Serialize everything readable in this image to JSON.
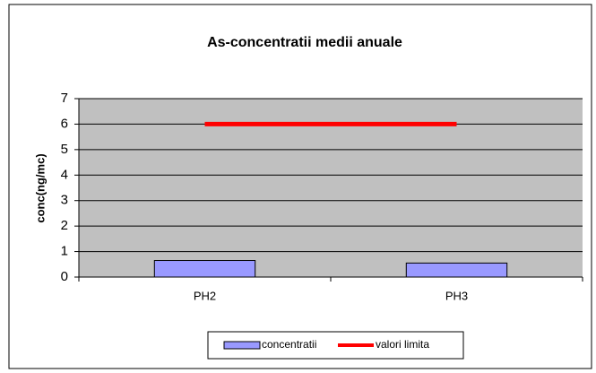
{
  "chart_data": {
    "type": "bar",
    "title": "As-concentratii medii anuale",
    "y_label": "conc(ng/mc)",
    "categories": [
      "PH2",
      "PH3"
    ],
    "series": [
      {
        "name": "concentratii",
        "type": "bar",
        "color": "#9999ff",
        "values": [
          0.65,
          0.55
        ]
      },
      {
        "name": "valori limita",
        "type": "line",
        "color": "#ff0000",
        "values": [
          6,
          6
        ]
      }
    ],
    "ylim": [
      0,
      7
    ],
    "yticks": [
      0,
      1,
      2,
      3,
      4,
      5,
      6,
      7
    ],
    "grid": true,
    "legend": "bottom"
  }
}
